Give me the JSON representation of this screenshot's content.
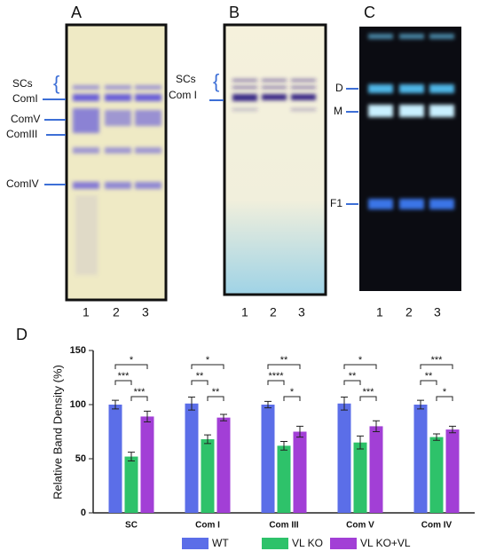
{
  "panels": [
    {
      "label": "A",
      "bands": [
        "SCs",
        "ComI",
        "ComV",
        "ComIII",
        "ComIV"
      ],
      "lanes": [
        "1",
        "2",
        "3"
      ]
    },
    {
      "label": "B",
      "bands": [
        "SCs",
        "Com I"
      ],
      "lanes": [
        "1",
        "2",
        "3"
      ]
    },
    {
      "label": "C",
      "bands": [
        "D",
        "M",
        "F1"
      ],
      "lanes": [
        "1",
        "2",
        "3"
      ]
    }
  ],
  "chart_data": {
    "type": "bar",
    "panel_label": "D",
    "y_label": "Relative Band Density (%)",
    "categories": [
      "SC",
      "Com I",
      "Com III",
      "Com V",
      "Com IV"
    ],
    "series": [
      {
        "name": "WT",
        "color": "#5b6ee8",
        "values": [
          100,
          101,
          100,
          101,
          100
        ],
        "errors": [
          4,
          6,
          3,
          6,
          4
        ]
      },
      {
        "name": "VL KO",
        "color": "#2ec26a",
        "values": [
          52,
          68,
          62,
          65,
          70
        ],
        "errors": [
          4,
          4,
          4,
          6,
          3
        ]
      },
      {
        "name": "VL KO+VL",
        "color": "#a23fd6",
        "values": [
          89,
          88,
          75,
          80,
          77
        ],
        "errors": [
          5,
          3,
          5,
          5,
          3
        ]
      }
    ],
    "significance": [
      {
        "outer": "*",
        "left": "***",
        "right": "***"
      },
      {
        "outer": "*",
        "left": "**",
        "right": "**"
      },
      {
        "outer": "**",
        "left": "****",
        "right": "*"
      },
      {
        "outer": "*",
        "left": "**",
        "right": "***"
      },
      {
        "outer": "***",
        "left": "**",
        "right": "*"
      }
    ],
    "ylim": [
      0,
      150
    ],
    "yticks": [
      0,
      50,
      100,
      150
    ],
    "grid": false
  }
}
